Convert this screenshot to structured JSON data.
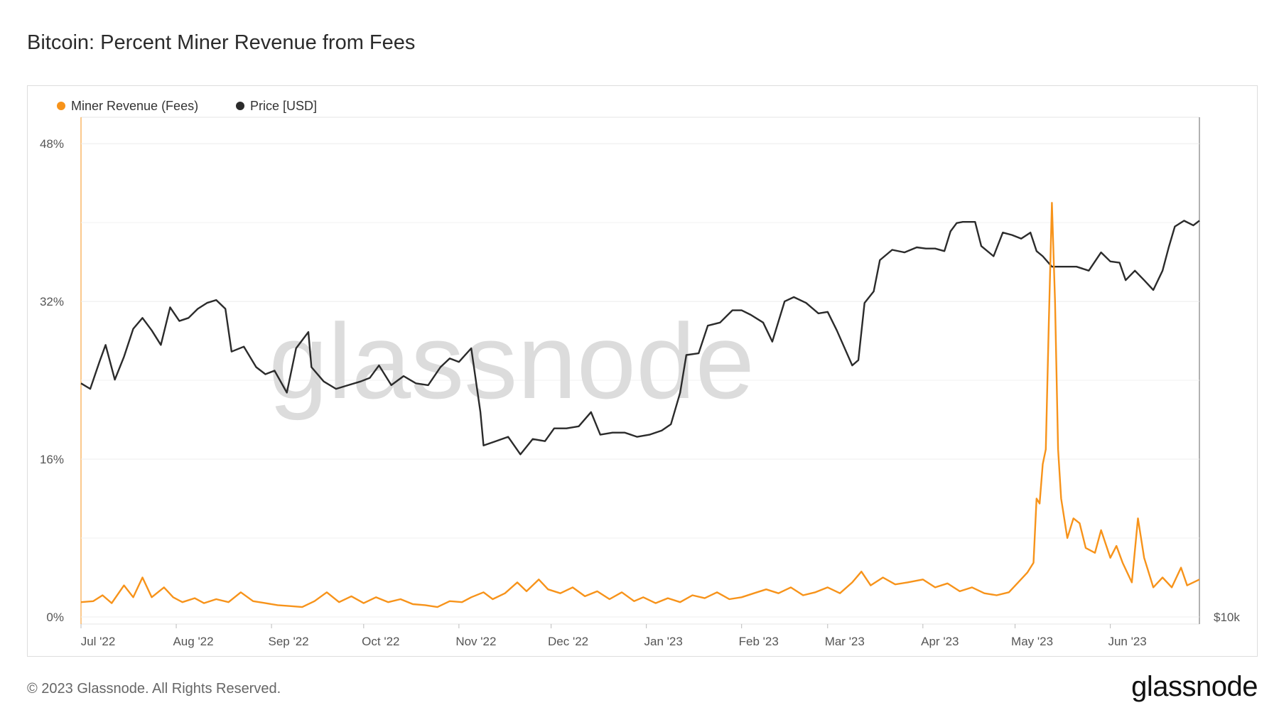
{
  "title": "Bitcoin: Percent Miner Revenue from Fees",
  "footer": "© 2023 Glassnode. All Rights Reserved.",
  "brand": "glassnode",
  "watermark": "glassnode",
  "colors": {
    "fees": "#f7931a",
    "price": "#2b2b2b",
    "grid": "#ececec"
  },
  "chart_data": {
    "type": "line",
    "title": "Bitcoin: Percent Miner Revenue from Fees",
    "legend_position": "top-left",
    "grid": true,
    "x_labels": [
      "Jul '22",
      "Aug '22",
      "Sep '22",
      "Oct '22",
      "Nov '22",
      "Dec '22",
      "Jan '23",
      "Feb '23",
      "Mar '23",
      "Apr '23",
      "May '23",
      "Jun '23"
    ],
    "x_start": "2022-07-01",
    "x_end": "2023-06-30",
    "left_axis": {
      "ticks": [
        "0%",
        "16%",
        "32%",
        "48%"
      ],
      "range": [
        0,
        55
      ]
    },
    "right_axis": {
      "ticks": [
        "$10k"
      ],
      "scale": "log"
    },
    "series": [
      {
        "name": "Miner Revenue (Fees)",
        "axis": "left",
        "color": "#f7931a",
        "points": [
          [
            "2022-07-01",
            1.5
          ],
          [
            "2022-07-05",
            1.6
          ],
          [
            "2022-07-08",
            2.2
          ],
          [
            "2022-07-11",
            1.4
          ],
          [
            "2022-07-15",
            3.2
          ],
          [
            "2022-07-18",
            2.0
          ],
          [
            "2022-07-21",
            4.0
          ],
          [
            "2022-07-24",
            2.0
          ],
          [
            "2022-07-28",
            3.0
          ],
          [
            "2022-07-31",
            2.0
          ],
          [
            "2022-08-03",
            1.5
          ],
          [
            "2022-08-07",
            1.9
          ],
          [
            "2022-08-10",
            1.4
          ],
          [
            "2022-08-14",
            1.8
          ],
          [
            "2022-08-18",
            1.5
          ],
          [
            "2022-08-22",
            2.5
          ],
          [
            "2022-08-26",
            1.6
          ],
          [
            "2022-08-30",
            1.4
          ],
          [
            "2022-09-03",
            1.2
          ],
          [
            "2022-09-07",
            1.1
          ],
          [
            "2022-09-11",
            1.0
          ],
          [
            "2022-09-15",
            1.6
          ],
          [
            "2022-09-19",
            2.5
          ],
          [
            "2022-09-23",
            1.5
          ],
          [
            "2022-09-27",
            2.1
          ],
          [
            "2022-10-01",
            1.4
          ],
          [
            "2022-10-05",
            2.0
          ],
          [
            "2022-10-09",
            1.5
          ],
          [
            "2022-10-13",
            1.8
          ],
          [
            "2022-10-17",
            1.3
          ],
          [
            "2022-10-21",
            1.2
          ],
          [
            "2022-10-25",
            1.0
          ],
          [
            "2022-10-29",
            1.6
          ],
          [
            "2022-11-02",
            1.5
          ],
          [
            "2022-11-05",
            2.0
          ],
          [
            "2022-11-09",
            2.5
          ],
          [
            "2022-11-12",
            1.8
          ],
          [
            "2022-11-16",
            2.4
          ],
          [
            "2022-11-20",
            3.5
          ],
          [
            "2022-11-23",
            2.6
          ],
          [
            "2022-11-27",
            3.8
          ],
          [
            "2022-11-30",
            2.8
          ],
          [
            "2022-12-04",
            2.4
          ],
          [
            "2022-12-08",
            3.0
          ],
          [
            "2022-12-12",
            2.1
          ],
          [
            "2022-12-16",
            2.6
          ],
          [
            "2022-12-20",
            1.8
          ],
          [
            "2022-12-24",
            2.5
          ],
          [
            "2022-12-28",
            1.6
          ],
          [
            "2022-12-31",
            2.0
          ],
          [
            "2023-01-04",
            1.4
          ],
          [
            "2023-01-08",
            1.9
          ],
          [
            "2023-01-12",
            1.5
          ],
          [
            "2023-01-16",
            2.2
          ],
          [
            "2023-01-20",
            1.9
          ],
          [
            "2023-01-24",
            2.5
          ],
          [
            "2023-01-28",
            1.8
          ],
          [
            "2023-02-01",
            2.0
          ],
          [
            "2023-02-05",
            2.4
          ],
          [
            "2023-02-09",
            2.8
          ],
          [
            "2023-02-13",
            2.4
          ],
          [
            "2023-02-17",
            3.0
          ],
          [
            "2023-02-21",
            2.2
          ],
          [
            "2023-02-25",
            2.5
          ],
          [
            "2023-03-01",
            3.0
          ],
          [
            "2023-03-05",
            2.4
          ],
          [
            "2023-03-09",
            3.5
          ],
          [
            "2023-03-12",
            4.6
          ],
          [
            "2023-03-15",
            3.2
          ],
          [
            "2023-03-19",
            4.0
          ],
          [
            "2023-03-23",
            3.3
          ],
          [
            "2023-03-27",
            3.5
          ],
          [
            "2023-04-01",
            3.8
          ],
          [
            "2023-04-05",
            3.0
          ],
          [
            "2023-04-09",
            3.4
          ],
          [
            "2023-04-13",
            2.6
          ],
          [
            "2023-04-17",
            3.0
          ],
          [
            "2023-04-21",
            2.4
          ],
          [
            "2023-04-25",
            2.2
          ],
          [
            "2023-04-29",
            2.5
          ],
          [
            "2023-05-02",
            3.5
          ],
          [
            "2023-05-05",
            4.5
          ],
          [
            "2023-05-07",
            5.5
          ],
          [
            "2023-05-08",
            12.0
          ],
          [
            "2023-05-09",
            11.5
          ],
          [
            "2023-05-10",
            15.5
          ],
          [
            "2023-05-11",
            17.0
          ],
          [
            "2023-05-12",
            30.0
          ],
          [
            "2023-05-13",
            42.0
          ],
          [
            "2023-05-14",
            32.0
          ],
          [
            "2023-05-15",
            17.0
          ],
          [
            "2023-05-16",
            12.0
          ],
          [
            "2023-05-18",
            8.0
          ],
          [
            "2023-05-20",
            10.0
          ],
          [
            "2023-05-22",
            9.5
          ],
          [
            "2023-05-24",
            7.0
          ],
          [
            "2023-05-27",
            6.5
          ],
          [
            "2023-05-29",
            8.8
          ],
          [
            "2023-06-01",
            6.0
          ],
          [
            "2023-06-03",
            7.2
          ],
          [
            "2023-06-05",
            5.5
          ],
          [
            "2023-06-08",
            3.5
          ],
          [
            "2023-06-10",
            10.0
          ],
          [
            "2023-06-12",
            6.0
          ],
          [
            "2023-06-15",
            3.0
          ],
          [
            "2023-06-18",
            4.0
          ],
          [
            "2023-06-21",
            3.0
          ],
          [
            "2023-06-24",
            5.0
          ],
          [
            "2023-06-26",
            3.2
          ],
          [
            "2023-06-28",
            3.5
          ],
          [
            "2023-06-30",
            3.8
          ]
        ]
      },
      {
        "name": "Price [USD]",
        "axis": "right",
        "color": "#2b2b2b",
        "points": [
          [
            "2022-07-01",
            19300
          ],
          [
            "2022-07-04",
            19000
          ],
          [
            "2022-07-07",
            20500
          ],
          [
            "2022-07-09",
            21500
          ],
          [
            "2022-07-12",
            19500
          ],
          [
            "2022-07-15",
            20800
          ],
          [
            "2022-07-18",
            22500
          ],
          [
            "2022-07-21",
            23200
          ],
          [
            "2022-07-24",
            22400
          ],
          [
            "2022-07-27",
            21500
          ],
          [
            "2022-07-30",
            23900
          ],
          [
            "2022-08-02",
            23000
          ],
          [
            "2022-08-05",
            23200
          ],
          [
            "2022-08-08",
            23800
          ],
          [
            "2022-08-11",
            24200
          ],
          [
            "2022-08-14",
            24400
          ],
          [
            "2022-08-17",
            23800
          ],
          [
            "2022-08-19",
            21100
          ],
          [
            "2022-08-23",
            21400
          ],
          [
            "2022-08-27",
            20200
          ],
          [
            "2022-08-30",
            19800
          ],
          [
            "2022-09-02",
            20000
          ],
          [
            "2022-09-06",
            18800
          ],
          [
            "2022-09-09",
            21300
          ],
          [
            "2022-09-13",
            22300
          ],
          [
            "2022-09-14",
            20200
          ],
          [
            "2022-09-18",
            19400
          ],
          [
            "2022-09-22",
            19000
          ],
          [
            "2022-09-26",
            19200
          ],
          [
            "2022-09-30",
            19400
          ],
          [
            "2022-10-03",
            19600
          ],
          [
            "2022-10-06",
            20300
          ],
          [
            "2022-10-10",
            19200
          ],
          [
            "2022-10-14",
            19700
          ],
          [
            "2022-10-18",
            19300
          ],
          [
            "2022-10-22",
            19200
          ],
          [
            "2022-10-26",
            20200
          ],
          [
            "2022-10-29",
            20700
          ],
          [
            "2022-11-01",
            20500
          ],
          [
            "2022-11-05",
            21300
          ],
          [
            "2022-11-08",
            17800
          ],
          [
            "2022-11-09",
            16200
          ],
          [
            "2022-11-13",
            16400
          ],
          [
            "2022-11-17",
            16600
          ],
          [
            "2022-11-21",
            15800
          ],
          [
            "2022-11-25",
            16500
          ],
          [
            "2022-11-29",
            16400
          ],
          [
            "2022-12-02",
            17000
          ],
          [
            "2022-12-06",
            17000
          ],
          [
            "2022-12-10",
            17100
          ],
          [
            "2022-12-14",
            17800
          ],
          [
            "2022-12-17",
            16700
          ],
          [
            "2022-12-21",
            16800
          ],
          [
            "2022-12-25",
            16800
          ],
          [
            "2022-12-29",
            16600
          ],
          [
            "2023-01-02",
            16700
          ],
          [
            "2023-01-06",
            16900
          ],
          [
            "2023-01-09",
            17200
          ],
          [
            "2023-01-12",
            18800
          ],
          [
            "2023-01-14",
            20900
          ],
          [
            "2023-01-18",
            21000
          ],
          [
            "2023-01-21",
            22700
          ],
          [
            "2023-01-25",
            22900
          ],
          [
            "2023-01-29",
            23700
          ],
          [
            "2023-02-01",
            23700
          ],
          [
            "2023-02-04",
            23400
          ],
          [
            "2023-02-08",
            22900
          ],
          [
            "2023-02-11",
            21700
          ],
          [
            "2023-02-15",
            24300
          ],
          [
            "2023-02-18",
            24600
          ],
          [
            "2023-02-22",
            24200
          ],
          [
            "2023-02-26",
            23500
          ],
          [
            "2023-03-01",
            23600
          ],
          [
            "2023-03-04",
            22400
          ],
          [
            "2023-03-09",
            20300
          ],
          [
            "2023-03-11",
            20600
          ],
          [
            "2023-03-13",
            24200
          ],
          [
            "2023-03-16",
            25000
          ],
          [
            "2023-03-18",
            27300
          ],
          [
            "2023-03-22",
            28100
          ],
          [
            "2023-03-26",
            27900
          ],
          [
            "2023-03-30",
            28300
          ],
          [
            "2023-04-02",
            28200
          ],
          [
            "2023-04-05",
            28200
          ],
          [
            "2023-04-08",
            28000
          ],
          [
            "2023-04-10",
            29600
          ],
          [
            "2023-04-12",
            30300
          ],
          [
            "2023-04-14",
            30400
          ],
          [
            "2023-04-18",
            30400
          ],
          [
            "2023-04-20",
            28400
          ],
          [
            "2023-04-24",
            27600
          ],
          [
            "2023-04-27",
            29500
          ],
          [
            "2023-04-30",
            29300
          ],
          [
            "2023-05-03",
            29000
          ],
          [
            "2023-05-06",
            29500
          ],
          [
            "2023-05-08",
            28000
          ],
          [
            "2023-05-10",
            27600
          ],
          [
            "2023-05-13",
            26800
          ],
          [
            "2023-05-17",
            26800
          ],
          [
            "2023-05-21",
            26800
          ],
          [
            "2023-05-25",
            26500
          ],
          [
            "2023-05-29",
            27900
          ],
          [
            "2023-06-01",
            27200
          ],
          [
            "2023-06-04",
            27100
          ],
          [
            "2023-06-06",
            25800
          ],
          [
            "2023-06-09",
            26500
          ],
          [
            "2023-06-12",
            25800
          ],
          [
            "2023-06-15",
            25100
          ],
          [
            "2023-06-18",
            26500
          ],
          [
            "2023-06-20",
            28300
          ],
          [
            "2023-06-22",
            30000
          ],
          [
            "2023-06-25",
            30500
          ],
          [
            "2023-06-28",
            30100
          ],
          [
            "2023-06-30",
            30500
          ]
        ]
      }
    ]
  }
}
